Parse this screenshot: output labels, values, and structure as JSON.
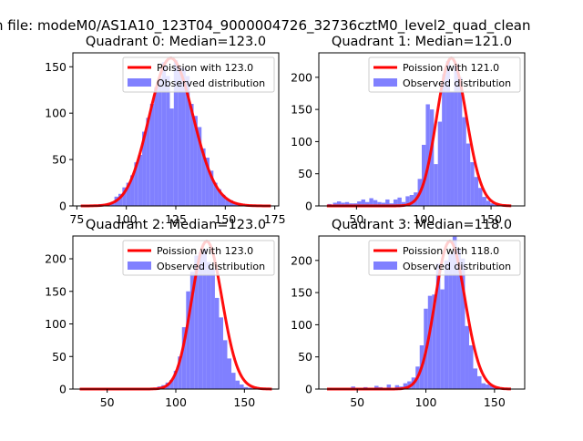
{
  "figure": {
    "suptitle": "n file: modeM0/AS1A10_123T04_9000004726_32736cztM0_level2_quad_clean"
  },
  "colors": {
    "bars": "#8080ff",
    "curve": "#ff0000",
    "axes": "#000000"
  },
  "chart_data": [
    {
      "type": "bar",
      "title": "Quadrant 0: Median=123.0",
      "xlim": [
        73,
        177
      ],
      "ylim": [
        0,
        165
      ],
      "xticks": [
        75,
        100,
        125,
        150,
        175
      ],
      "xtick_labels": [
        "75",
        "100",
        "125",
        "150",
        "175"
      ],
      "yticks": [
        0,
        50,
        100,
        150
      ],
      "ytick_labels": [
        "0",
        "50",
        "100",
        "150"
      ],
      "legend": [
        "Poission with 123.0",
        "Observed distribution"
      ],
      "poisson_lambda": 123.0,
      "curve_x": [
        77,
        173
      ],
      "bin_width": 2,
      "bins": [
        [
          81,
          1
        ],
        [
          83,
          1
        ],
        [
          85,
          1
        ],
        [
          87,
          2
        ],
        [
          89,
          2
        ],
        [
          91,
          3
        ],
        [
          93,
          4
        ],
        [
          95,
          10
        ],
        [
          97,
          13
        ],
        [
          99,
          20
        ],
        [
          101,
          25
        ],
        [
          103,
          33
        ],
        [
          105,
          47
        ],
        [
          107,
          55
        ],
        [
          109,
          80
        ],
        [
          111,
          95
        ],
        [
          113,
          110
        ],
        [
          115,
          128
        ],
        [
          117,
          138
        ],
        [
          119,
          155
        ],
        [
          121,
          140
        ],
        [
          123,
          105
        ],
        [
          125,
          157
        ],
        [
          127,
          150
        ],
        [
          129,
          148
        ],
        [
          131,
          140
        ],
        [
          133,
          110
        ],
        [
          135,
          97
        ],
        [
          137,
          85
        ],
        [
          139,
          62
        ],
        [
          141,
          52
        ],
        [
          143,
          38
        ],
        [
          145,
          25
        ],
        [
          147,
          18
        ],
        [
          149,
          12
        ],
        [
          151,
          8
        ],
        [
          153,
          6
        ],
        [
          155,
          4
        ],
        [
          157,
          3
        ],
        [
          159,
          2
        ],
        [
          161,
          1
        ],
        [
          163,
          1
        ],
        [
          165,
          1
        ]
      ]
    },
    {
      "type": "bar",
      "title": "Quadrant 1: Median=121.0",
      "xlim": [
        22,
        175
      ],
      "ylim": [
        0,
        238
      ],
      "xticks": [
        50,
        100,
        150
      ],
      "xtick_labels": [
        "50",
        "100",
        "150"
      ],
      "yticks": [
        0,
        50,
        100,
        150,
        200
      ],
      "ytick_labels": [
        "0",
        "50",
        "100",
        "150",
        "200"
      ],
      "legend": [
        "Poission with 121.0",
        "Observed distribution"
      ],
      "poisson_lambda": 121.0,
      "curve_x": [
        28,
        165
      ],
      "bin_width": 3,
      "bins": [
        [
          30,
          3
        ],
        [
          34,
          5
        ],
        [
          37,
          7
        ],
        [
          40,
          5
        ],
        [
          43,
          6
        ],
        [
          46,
          4
        ],
        [
          49,
          4
        ],
        [
          52,
          7
        ],
        [
          55,
          10
        ],
        [
          58,
          6
        ],
        [
          61,
          12
        ],
        [
          64,
          9
        ],
        [
          67,
          6
        ],
        [
          70,
          5
        ],
        [
          73,
          10
        ],
        [
          76,
          4
        ],
        [
          79,
          10
        ],
        [
          82,
          13
        ],
        [
          85,
          6
        ],
        [
          88,
          15
        ],
        [
          91,
          17
        ],
        [
          94,
          21
        ],
        [
          97,
          42
        ],
        [
          100,
          95
        ],
        [
          103,
          158
        ],
        [
          106,
          150
        ],
        [
          109,
          65
        ],
        [
          112,
          131
        ],
        [
          115,
          205
        ],
        [
          118,
          225
        ],
        [
          121,
          178
        ],
        [
          124,
          220
        ],
        [
          127,
          200
        ],
        [
          130,
          138
        ],
        [
          133,
          97
        ],
        [
          136,
          68
        ],
        [
          139,
          45
        ],
        [
          142,
          28
        ],
        [
          145,
          14
        ],
        [
          148,
          8
        ],
        [
          151,
          4
        ],
        [
          154,
          2
        ],
        [
          157,
          1
        ]
      ]
    },
    {
      "type": "bar",
      "title": "Quadrant 2: Median=123.0",
      "xlim": [
        25,
        175
      ],
      "ylim": [
        0,
        235
      ],
      "xticks": [
        50,
        100,
        150
      ],
      "xtick_labels": [
        "50",
        "100",
        "150"
      ],
      "yticks": [
        0,
        50,
        100,
        150,
        200
      ],
      "ytick_labels": [
        "0",
        "50",
        "100",
        "150",
        "200"
      ],
      "legend": [
        "Poission with 123.0",
        "Observed distribution"
      ],
      "poisson_lambda": 123.0,
      "curve_x": [
        30,
        170
      ],
      "bin_width": 3,
      "bins": [
        [
          82,
          1
        ],
        [
          85,
          2
        ],
        [
          88,
          4
        ],
        [
          91,
          6
        ],
        [
          94,
          10
        ],
        [
          97,
          14
        ],
        [
          100,
          28
        ],
        [
          103,
          50
        ],
        [
          106,
          95
        ],
        [
          109,
          150
        ],
        [
          112,
          180
        ],
        [
          115,
          205
        ],
        [
          118,
          210
        ],
        [
          121,
          215
        ],
        [
          124,
          195
        ],
        [
          127,
          185
        ],
        [
          130,
          140
        ],
        [
          133,
          110
        ],
        [
          136,
          75
        ],
        [
          139,
          47
        ],
        [
          142,
          25
        ],
        [
          145,
          13
        ],
        [
          148,
          7
        ],
        [
          151,
          3
        ],
        [
          154,
          2
        ],
        [
          157,
          1
        ]
      ]
    },
    {
      "type": "bar",
      "title": "Quadrant 3: Median=118.0",
      "xlim": [
        22,
        172
      ],
      "ylim": [
        0,
        238
      ],
      "xticks": [
        50,
        100,
        150
      ],
      "xtick_labels": [
        "50",
        "100",
        "150"
      ],
      "yticks": [
        0,
        50,
        100,
        150,
        200
      ],
      "ytick_labels": [
        "0",
        "50",
        "100",
        "150",
        "200"
      ],
      "legend": [
        "Poission with 118.0",
        "Observed distribution"
      ],
      "poisson_lambda": 118.0,
      "curve_x": [
        28,
        162
      ],
      "bin_width": 3,
      "bins": [
        [
          30,
          2
        ],
        [
          41,
          1
        ],
        [
          47,
          4
        ],
        [
          56,
          3
        ],
        [
          64,
          5
        ],
        [
          67,
          3
        ],
        [
          73,
          7
        ],
        [
          79,
          6
        ],
        [
          82,
          4
        ],
        [
          85,
          9
        ],
        [
          88,
          12
        ],
        [
          91,
          18
        ],
        [
          94,
          35
        ],
        [
          97,
          68
        ],
        [
          100,
          125
        ],
        [
          103,
          145
        ],
        [
          106,
          147
        ],
        [
          109,
          195
        ],
        [
          112,
          155
        ],
        [
          115,
          200
        ],
        [
          118,
          210
        ],
        [
          121,
          237
        ],
        [
          124,
          218
        ],
        [
          127,
          203
        ],
        [
          130,
          98
        ],
        [
          133,
          68
        ],
        [
          136,
          32
        ],
        [
          139,
          20
        ],
        [
          142,
          9
        ],
        [
          145,
          7
        ],
        [
          148,
          5
        ],
        [
          151,
          2
        ]
      ]
    }
  ]
}
